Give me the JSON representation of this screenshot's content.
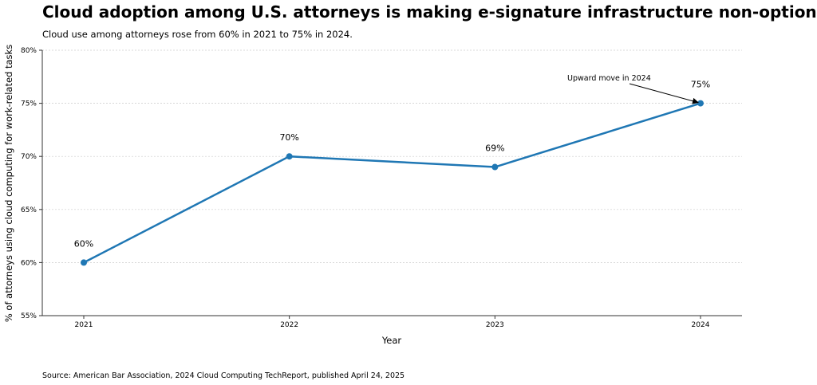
{
  "title": "Cloud adoption among U.S. attorneys is making e-signature infrastructure non-optional",
  "subtitle": "Cloud use among attorneys rose from 60% in 2021 to 75% in 2024.",
  "source": "Source: American Bar Association, 2024 Cloud Computing TechReport, published April 24, 2025",
  "chart_data": {
    "type": "line",
    "x": [
      2021,
      2022,
      2023,
      2024
    ],
    "xtick_labels": [
      "2021",
      "2022",
      "2023",
      "2024"
    ],
    "series": [
      {
        "values": [
          60,
          70,
          69,
          75
        ],
        "color": "#1f77b4"
      }
    ],
    "data_labels": [
      "60%",
      "70%",
      "69%",
      "75%"
    ],
    "xlabel": "Year",
    "ylabel": "% of attorneys using cloud computing for work-related tasks",
    "ylim": [
      55,
      80
    ],
    "ytick_values": [
      55,
      60,
      65,
      70,
      75,
      80
    ],
    "ytick_labels": [
      "55%",
      "60%",
      "65%",
      "70%",
      "75%",
      "80%"
    ],
    "grid": "horizontal dotted",
    "annotation": {
      "text": "Upward move in 2024",
      "target_x": 2024,
      "target_y": 75
    }
  }
}
